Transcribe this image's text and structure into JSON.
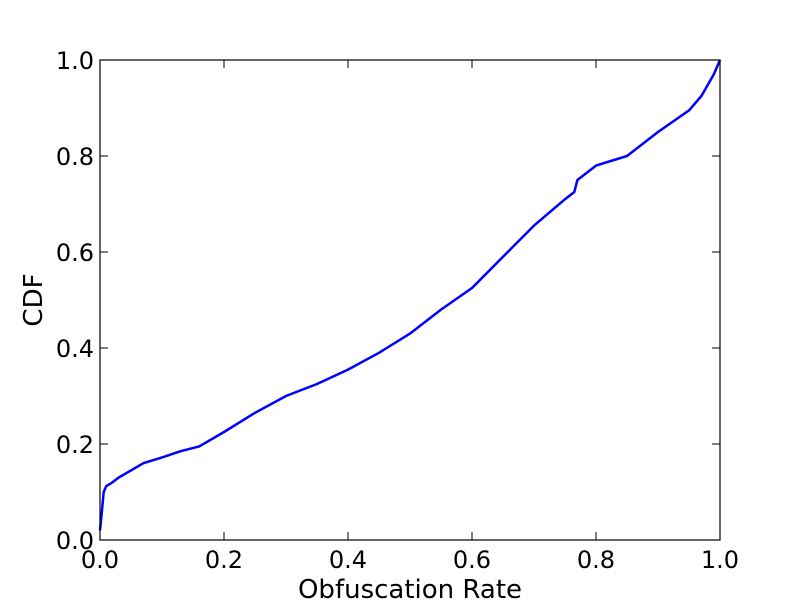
{
  "chart_data": {
    "type": "line",
    "title": "",
    "xlabel": "Obfuscation Rate",
    "ylabel": "CDF",
    "xlim": [
      0.0,
      1.0
    ],
    "ylim": [
      0.0,
      1.0
    ],
    "xticks": [
      "0.0",
      "0.2",
      "0.4",
      "0.6",
      "0.8",
      "1.0"
    ],
    "yticks": [
      "0.0",
      "0.2",
      "0.4",
      "0.6",
      "0.8",
      "1.0"
    ],
    "grid": false,
    "line_color": "#0000ff",
    "series": [
      {
        "x": [
          0.0,
          0.003,
          0.006,
          0.01,
          0.02,
          0.03,
          0.05,
          0.07,
          0.1,
          0.13,
          0.16,
          0.2,
          0.25,
          0.3,
          0.35,
          0.4,
          0.45,
          0.5,
          0.55,
          0.6,
          0.65,
          0.7,
          0.75,
          0.765,
          0.77,
          0.8,
          0.85,
          0.9,
          0.95,
          0.97,
          0.99,
          1.0
        ],
        "y": [
          0.02,
          0.06,
          0.1,
          0.112,
          0.12,
          0.13,
          0.145,
          0.16,
          0.172,
          0.185,
          0.195,
          0.225,
          0.265,
          0.3,
          0.325,
          0.355,
          0.39,
          0.43,
          0.48,
          0.525,
          0.59,
          0.655,
          0.71,
          0.725,
          0.75,
          0.78,
          0.8,
          0.85,
          0.895,
          0.925,
          0.97,
          1.0
        ]
      }
    ]
  }
}
